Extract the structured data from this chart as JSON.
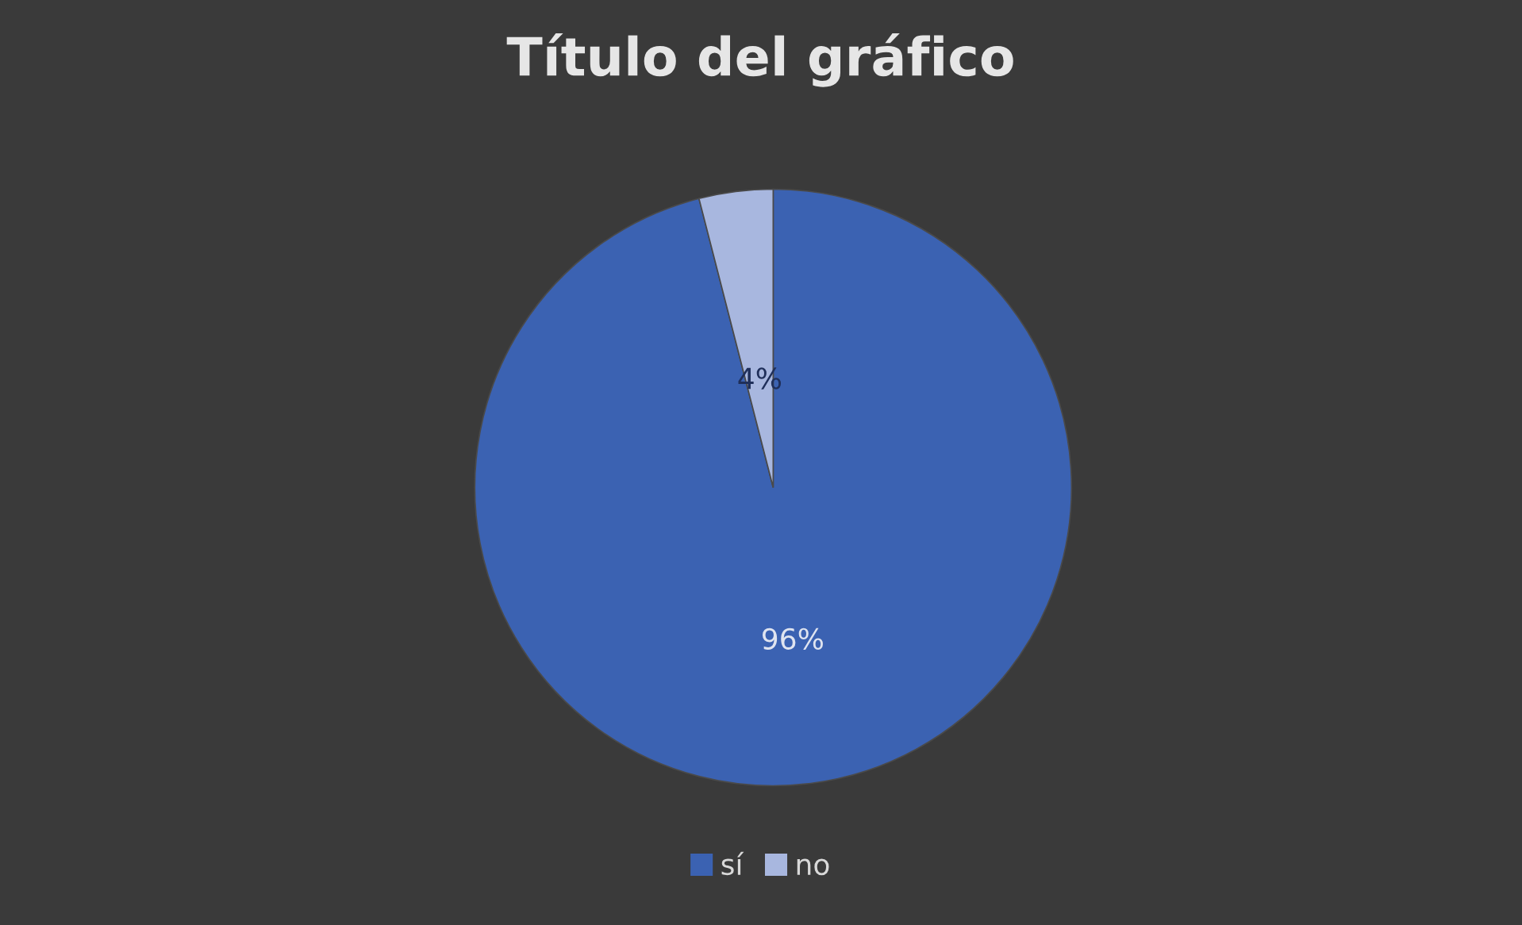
{
  "chart_data": {
    "type": "pie",
    "title": "Título del gráfico",
    "categories": [
      "sí",
      "no"
    ],
    "values": [
      96,
      4
    ],
    "colors": [
      "#3b62b2",
      "#a8b7df"
    ],
    "value_labels": [
      "96%",
      "4%"
    ],
    "legend": "bottom"
  }
}
